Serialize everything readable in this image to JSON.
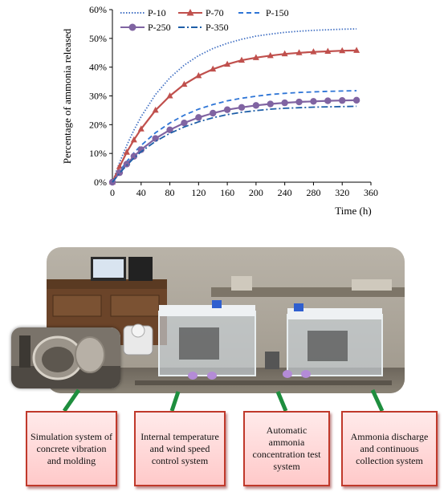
{
  "chart_data": {
    "type": "line",
    "xlabel": "Time (h)",
    "ylabel": "Percentage of ammonia released",
    "xlim": [
      0,
      360
    ],
    "ylim": [
      0,
      60
    ],
    "x_ticks": [
      "0",
      "40",
      "80",
      "120",
      "160",
      "200",
      "240",
      "280",
      "320",
      "360"
    ],
    "y_ticks": [
      "0%",
      "10%",
      "20%",
      "30%",
      "40%",
      "50%",
      "60%"
    ],
    "legend_position": "top",
    "series": [
      {
        "name": "P-10",
        "style": "dotted",
        "color": "#4472c4",
        "marker": "none",
        "x": [
          0,
          10,
          20,
          30,
          40,
          60,
          80,
          100,
          120,
          140,
          160,
          180,
          200,
          220,
          240,
          260,
          280,
          300,
          320,
          340
        ],
        "values": [
          0,
          6.8,
          12.8,
          18.1,
          22.8,
          30.5,
          36.3,
          40.7,
          44.0,
          46.5,
          48.3,
          49.7,
          50.8,
          51.5,
          52.1,
          52.5,
          52.8,
          53.0,
          53.2,
          53.3
        ]
      },
      {
        "name": "P-70",
        "style": "solid",
        "color": "#c0504d",
        "marker": "triangle",
        "x": [
          0,
          10,
          20,
          30,
          40,
          60,
          80,
          100,
          120,
          140,
          160,
          180,
          200,
          220,
          240,
          260,
          280,
          300,
          320,
          340
        ],
        "values": [
          0,
          5.4,
          10.4,
          14.7,
          18.5,
          25.0,
          30.0,
          34.0,
          37.0,
          39.3,
          41.0,
          42.4,
          43.3,
          44.0,
          44.6,
          45.0,
          45.3,
          45.5,
          45.7,
          45.8
        ]
      },
      {
        "name": "P-150",
        "style": "dashed",
        "color": "#2e75d6",
        "marker": "none",
        "x": [
          0,
          10,
          20,
          30,
          40,
          60,
          80,
          100,
          120,
          140,
          160,
          180,
          200,
          220,
          240,
          260,
          280,
          300,
          320,
          340
        ],
        "values": [
          0,
          3.8,
          7.2,
          10.2,
          12.8,
          17.2,
          20.6,
          23.3,
          25.4,
          27.0,
          28.3,
          29.2,
          29.9,
          30.5,
          30.9,
          31.2,
          31.4,
          31.6,
          31.7,
          31.8
        ]
      },
      {
        "name": "P-250",
        "style": "solid",
        "color": "#8064a2",
        "marker": "circle",
        "x": [
          0,
          10,
          20,
          30,
          40,
          60,
          80,
          100,
          120,
          140,
          160,
          180,
          200,
          220,
          240,
          260,
          280,
          300,
          320,
          340
        ],
        "values": [
          0,
          3.3,
          6.3,
          9.0,
          11.3,
          15.2,
          18.2,
          20.6,
          22.5,
          24.0,
          25.2,
          26.0,
          26.7,
          27.2,
          27.6,
          27.9,
          28.1,
          28.3,
          28.4,
          28.5
        ]
      },
      {
        "name": "P-350",
        "style": "dashdot",
        "color": "#1f5fa8",
        "marker": "none",
        "x": [
          0,
          10,
          20,
          30,
          40,
          60,
          80,
          100,
          120,
          140,
          160,
          180,
          200,
          220,
          240,
          260,
          280,
          300,
          320,
          340
        ],
        "values": [
          0,
          3.1,
          5.9,
          8.4,
          10.6,
          14.2,
          17.0,
          19.2,
          21.0,
          22.4,
          23.5,
          24.3,
          24.9,
          25.4,
          25.7,
          25.9,
          26.1,
          26.2,
          26.3,
          26.4
        ]
      }
    ]
  },
  "captions": {
    "simulation": "Simulation system of concrete vibration and molding",
    "internal": "Internal temperature and wind speed control system",
    "automatic": "Automatic ammonia concentration test system",
    "discharge": "Ammonia discharge and continuous collection system"
  },
  "colors": {
    "caption_border": "#c0392b",
    "connector": "#1e8e3e"
  },
  "icons": {
    "photo": "lab-equipment-photo",
    "inset": "concrete-mold-photo"
  }
}
